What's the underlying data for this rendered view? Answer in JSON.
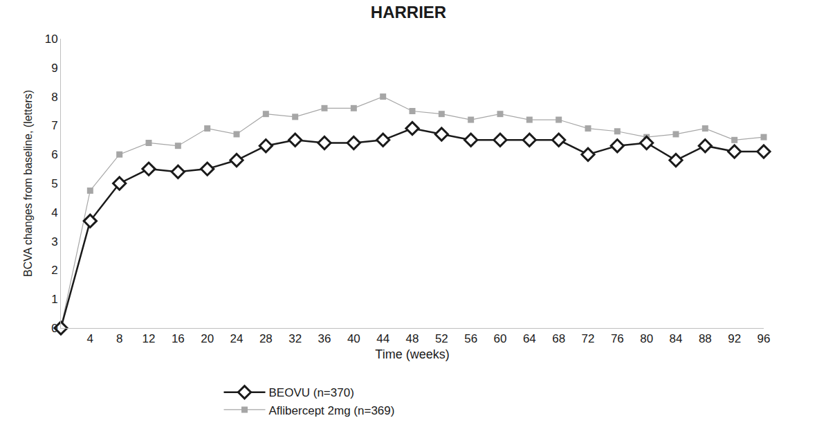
{
  "chart_data": {
    "type": "line",
    "title": "HARRIER",
    "x_label": "Time (weeks)",
    "y_label": "BCVA changes from baseline, (letters)",
    "x": [
      0,
      4,
      8,
      12,
      16,
      20,
      24,
      28,
      32,
      36,
      40,
      44,
      48,
      52,
      56,
      60,
      64,
      68,
      72,
      76,
      80,
      84,
      88,
      92,
      96
    ],
    "series": [
      {
        "name": "BEOVU (n=370)",
        "color": "#1a1a1a",
        "marker": "diamond",
        "values": [
          0,
          3.7,
          5.0,
          5.5,
          5.4,
          5.5,
          5.8,
          6.3,
          6.5,
          6.4,
          6.4,
          6.5,
          6.9,
          6.7,
          6.5,
          6.5,
          6.5,
          6.5,
          6.0,
          6.3,
          6.4,
          5.8,
          6.3,
          6.1,
          6.1
        ]
      },
      {
        "name": "Aflibercept 2mg (n=369)",
        "color": "#a6a6a6",
        "marker": "square",
        "values": [
          0,
          4.75,
          6.0,
          6.4,
          6.3,
          6.9,
          6.7,
          7.4,
          7.3,
          7.6,
          7.6,
          8.0,
          7.5,
          7.4,
          7.2,
          7.4,
          7.2,
          7.2,
          6.9,
          6.8,
          6.6,
          6.7,
          6.9,
          6.5,
          6.6
        ]
      }
    ],
    "xlim": [
      0,
      96
    ],
    "xticks": [
      4,
      8,
      12,
      16,
      20,
      24,
      28,
      32,
      36,
      40,
      44,
      48,
      52,
      56,
      60,
      64,
      68,
      72,
      76,
      80,
      84,
      88,
      92,
      96
    ],
    "ylim": [
      0,
      10
    ],
    "yticks": [
      0,
      1,
      2,
      3,
      4,
      5,
      6,
      7,
      8,
      9,
      10
    ],
    "grid": false,
    "legend": "bottom"
  }
}
